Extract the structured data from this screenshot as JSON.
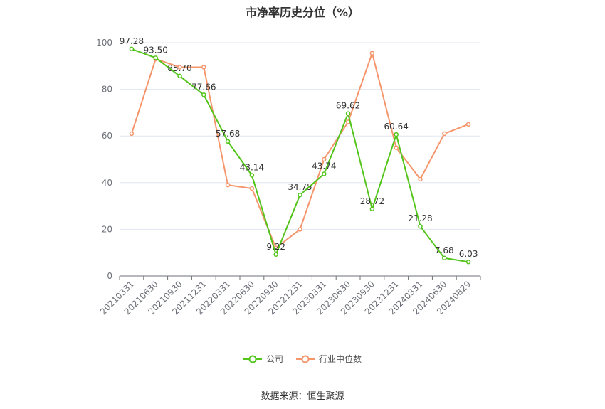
{
  "chart_data": {
    "type": "line",
    "title": "市净率历史分位（%）",
    "categories": [
      "20210331",
      "20210630",
      "20210930",
      "20211231",
      "20220331",
      "20220630",
      "20220930",
      "20221231",
      "20230331",
      "20230630",
      "20230930",
      "20231231",
      "20240331",
      "20240630",
      "20240829"
    ],
    "ylim": [
      0,
      100
    ],
    "yticks": [
      0,
      20,
      40,
      60,
      80,
      100
    ],
    "grid": true,
    "legend_position": "bottom",
    "series": [
      {
        "name": "公司",
        "color": "#52c41a",
        "values": [
          97.28,
          93.5,
          85.7,
          77.66,
          57.68,
          43.14,
          9.22,
          34.75,
          43.74,
          69.62,
          28.72,
          60.64,
          21.28,
          7.68,
          6.03
        ],
        "labels": [
          "97.28",
          "93.50",
          "85.70",
          "77.66",
          "57.68",
          "43.14",
          "9.22",
          "34.75",
          "43.74",
          "69.62",
          "28.72",
          "60.64",
          "21.28",
          "7.68",
          "6.03"
        ]
      },
      {
        "name": "行业中位数",
        "color": "#f5956b",
        "values": [
          61,
          93,
          89.5,
          89.5,
          39,
          37.5,
          12,
          20,
          50,
          66,
          95.5,
          55,
          41.5,
          61,
          65
        ]
      }
    ]
  },
  "footer": {
    "source": "数据来源：恒生聚源"
  }
}
